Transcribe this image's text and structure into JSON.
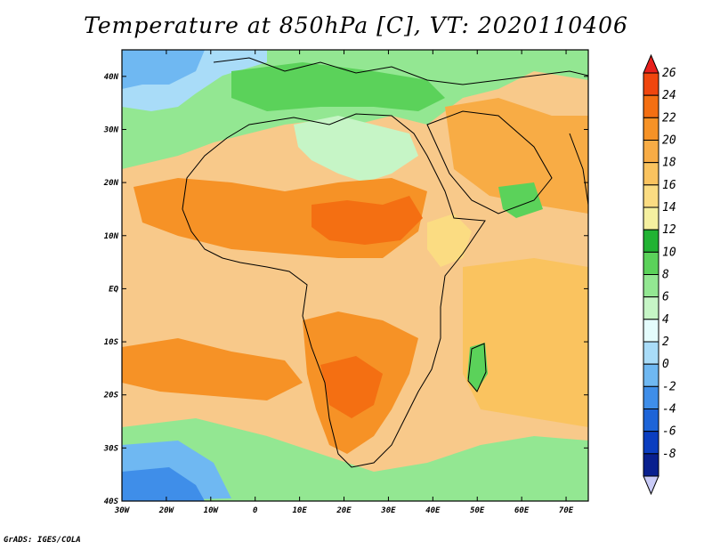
{
  "title": "Temperature at 850hPa [C], VT: 2020110406",
  "credit": "GrADS: IGES/COLA",
  "map": {
    "projection": "lat-lon",
    "lon_range": [
      -30,
      75
    ],
    "lat_range": [
      -40,
      45
    ],
    "lat_ticks": [
      "40N",
      "30N",
      "20N",
      "10N",
      "EQ",
      "10S",
      "20S",
      "30S",
      "40S"
    ],
    "lon_ticks": [
      "30W",
      "20W",
      "10W",
      "0",
      "10E",
      "20E",
      "30E",
      "40E",
      "50E",
      "60E",
      "70E"
    ]
  },
  "colorbar": {
    "levels": [
      "26",
      "24",
      "22",
      "20",
      "18",
      "16",
      "14",
      "12",
      "10",
      "8",
      "6",
      "4",
      "2",
      "0",
      "-2",
      "-4",
      "-6",
      "-8"
    ],
    "colors": [
      "#e8201c",
      "#f0460e",
      "#f46f12",
      "#f69226",
      "#f8ac45",
      "#fac35f",
      "#fbdc82",
      "#f5f0a0",
      "#21b333",
      "#5bd25a",
      "#93e792",
      "#c6f5c6",
      "#e4fcfc",
      "#a9dcf8",
      "#6fb8f2",
      "#3f8ee9",
      "#1d64d8",
      "#0b3ec0",
      "#09208f",
      "#c9cbf7"
    ]
  }
}
